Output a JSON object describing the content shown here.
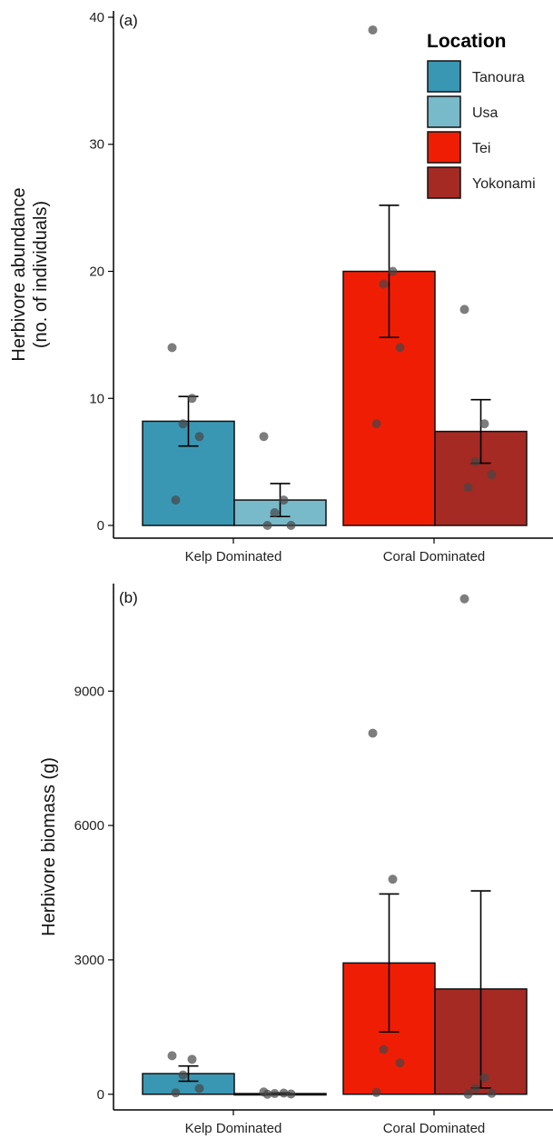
{
  "legend": {
    "title": "Location",
    "entries": [
      {
        "name": "Tanoura",
        "color": "#3a97b4"
      },
      {
        "name": "Usa",
        "color": "#78b9ca"
      },
      {
        "name": "Tei",
        "color": "#f01d05"
      },
      {
        "name": "Yokonami",
        "color": "#a52a23"
      }
    ]
  },
  "chart_data": [
    {
      "type": "bar",
      "panel_label": "(a)",
      "ylabel": "Herbivore abundance\n(no. of individuals)",
      "xlabel": "",
      "categories": [
        "Kelp Dominated",
        "Coral Dominated"
      ],
      "ylim": [
        -1,
        40.5
      ],
      "yticks": [
        0,
        10,
        20,
        30,
        40
      ],
      "series": [
        {
          "name": "Tanoura",
          "group": "Kelp Dominated",
          "mean": 8.2,
          "err": [
            6.25,
            10.15
          ],
          "points": [
            14,
            10,
            8,
            7,
            2
          ]
        },
        {
          "name": "Usa",
          "group": "Kelp Dominated",
          "mean": 2.0,
          "err": [
            0.7,
            3.3
          ],
          "points": [
            7,
            2,
            1,
            0,
            0
          ]
        },
        {
          "name": "Tei",
          "group": "Coral Dominated",
          "mean": 20.0,
          "err": [
            14.8,
            25.2
          ],
          "points": [
            39,
            20,
            19,
            14,
            8
          ]
        },
        {
          "name": "Yokonami",
          "group": "Coral Dominated",
          "mean": 7.4,
          "err": [
            4.9,
            9.9
          ],
          "points": [
            17,
            8,
            5,
            4,
            3
          ]
        }
      ]
    },
    {
      "type": "bar",
      "panel_label": "(b)",
      "ylabel": "Herbivore biomass (g)",
      "xlabel": "",
      "categories": [
        "Kelp Dominated",
        "Coral Dominated"
      ],
      "ylim": [
        -350,
        11400
      ],
      "yticks": [
        0,
        3000,
        6000,
        9000
      ],
      "series": [
        {
          "name": "Tanoura",
          "group": "Kelp Dominated",
          "mean": 460,
          "err": [
            290,
            630
          ],
          "points": [
            860,
            780,
            430,
            130,
            30
          ]
        },
        {
          "name": "Usa",
          "group": "Kelp Dominated",
          "mean": 15,
          "err": [
            0,
            30
          ],
          "points": [
            50,
            25,
            15,
            5,
            0
          ]
        },
        {
          "name": "Tei",
          "group": "Coral Dominated",
          "mean": 2930,
          "err": [
            1390,
            4470
          ],
          "points": [
            8060,
            4800,
            1000,
            700,
            40
          ]
        },
        {
          "name": "Yokonami",
          "group": "Coral Dominated",
          "mean": 2350,
          "err": [
            140,
            4540
          ],
          "points": [
            11060,
            370,
            130,
            20,
            0
          ]
        }
      ]
    }
  ]
}
